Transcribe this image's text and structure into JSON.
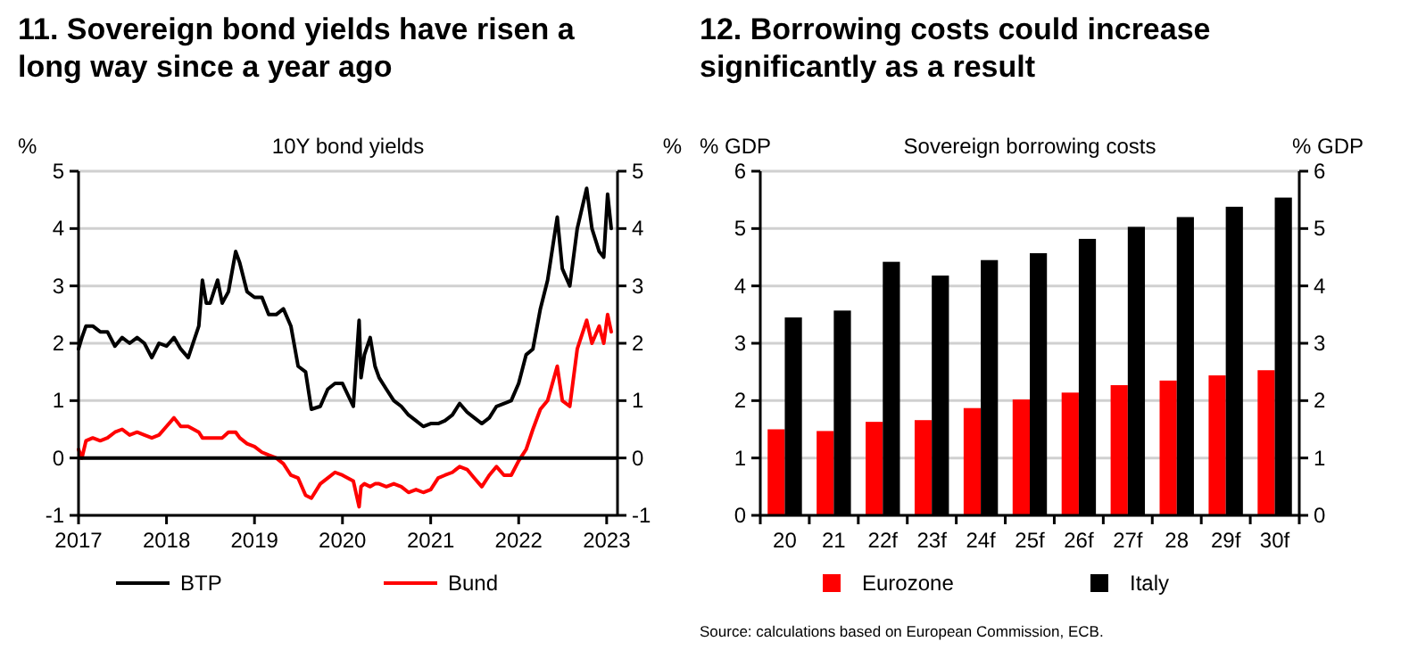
{
  "chart_data": [
    {
      "type": "line",
      "title": "11. Sovereign bond yields have risen a long way since a year ago",
      "subtitle": "10Y bond yields",
      "ylabel": "%",
      "y2label": "%",
      "x": [
        "2017-01-01",
        "2017-01-15",
        "2017-02-01",
        "2017-03-01",
        "2017-04-01",
        "2017-05-01",
        "2017-06-01",
        "2017-07-01",
        "2017-08-01",
        "2017-09-01",
        "2017-10-01",
        "2017-11-01",
        "2017-12-01",
        "2018-01-01",
        "2018-02-01",
        "2018-03-01",
        "2018-04-01",
        "2018-05-15",
        "2018-05-30",
        "2018-06-15",
        "2018-07-01",
        "2018-08-01",
        "2018-08-20",
        "2018-09-15",
        "2018-10-15",
        "2018-11-01",
        "2018-12-01",
        "2019-01-01",
        "2019-02-01",
        "2019-03-01",
        "2019-04-01",
        "2019-05-01",
        "2019-06-01",
        "2019-07-01",
        "2019-08-01",
        "2019-08-25",
        "2019-10-01",
        "2019-11-01",
        "2019-12-01",
        "2020-01-01",
        "2020-02-15",
        "2020-03-10",
        "2020-03-18",
        "2020-04-01",
        "2020-04-25",
        "2020-05-15",
        "2020-06-01",
        "2020-07-01",
        "2020-08-01",
        "2020-09-01",
        "2020-10-01",
        "2020-11-01",
        "2020-12-01",
        "2021-01-01",
        "2021-02-01",
        "2021-03-01",
        "2021-04-01",
        "2021-05-01",
        "2021-06-01",
        "2021-07-01",
        "2021-08-01",
        "2021-09-01",
        "2021-10-01",
        "2021-11-01",
        "2021-12-01",
        "2022-01-01",
        "2022-02-01",
        "2022-03-01",
        "2022-04-01",
        "2022-05-01",
        "2022-06-10",
        "2022-07-01",
        "2022-08-01",
        "2022-09-01",
        "2022-10-10",
        "2022-11-01",
        "2022-12-01",
        "2022-12-20",
        "2023-01-05",
        "2023-01-20"
      ],
      "xlim": [
        "2017-01-01",
        "2023-02-15"
      ],
      "xticks": [
        "2017",
        "2018",
        "2019",
        "2020",
        "2021",
        "2022",
        "2023"
      ],
      "ylim": [
        -1,
        5
      ],
      "yticks": [
        -1,
        0,
        1,
        2,
        3,
        4,
        5
      ],
      "y2lim": [
        -1,
        5
      ],
      "y2ticks": [
        -1,
        0,
        1,
        2,
        3,
        4,
        5
      ],
      "grid": "y",
      "legend": "bottom",
      "ref_lines": [
        {
          "axis": "y",
          "value": 0,
          "color": "#000000"
        }
      ],
      "series": [
        {
          "name": "BTP",
          "color": "#000000",
          "values": [
            1.9,
            2.1,
            2.3,
            2.3,
            2.2,
            2.2,
            1.95,
            2.1,
            2.0,
            2.1,
            2.0,
            1.75,
            2.0,
            1.95,
            2.1,
            1.9,
            1.75,
            2.3,
            3.1,
            2.7,
            2.7,
            3.1,
            2.7,
            2.9,
            3.6,
            3.4,
            2.9,
            2.8,
            2.8,
            2.5,
            2.5,
            2.6,
            2.3,
            1.6,
            1.5,
            0.85,
            0.9,
            1.2,
            1.3,
            1.3,
            0.9,
            2.4,
            1.4,
            1.8,
            2.1,
            1.6,
            1.4,
            1.2,
            1.0,
            0.9,
            0.75,
            0.65,
            0.55,
            0.6,
            0.6,
            0.65,
            0.75,
            0.95,
            0.8,
            0.7,
            0.6,
            0.7,
            0.9,
            0.95,
            1.0,
            1.3,
            1.8,
            1.9,
            2.6,
            3.1,
            4.2,
            3.3,
            3.0,
            4.0,
            4.7,
            4.0,
            3.6,
            3.5,
            4.6,
            4.0
          ]
        },
        {
          "name": "Bund",
          "color": "#ff0000",
          "values": [
            0.15,
            0.0,
            0.3,
            0.35,
            0.3,
            0.35,
            0.45,
            0.5,
            0.4,
            0.45,
            0.4,
            0.35,
            0.4,
            0.55,
            0.7,
            0.55,
            0.55,
            0.45,
            0.35,
            0.35,
            0.35,
            0.35,
            0.35,
            0.45,
            0.45,
            0.35,
            0.25,
            0.2,
            0.1,
            0.05,
            0.0,
            -0.1,
            -0.3,
            -0.35,
            -0.65,
            -0.7,
            -0.45,
            -0.35,
            -0.25,
            -0.3,
            -0.4,
            -0.85,
            -0.5,
            -0.45,
            -0.5,
            -0.45,
            -0.45,
            -0.5,
            -0.45,
            -0.5,
            -0.6,
            -0.55,
            -0.6,
            -0.55,
            -0.35,
            -0.3,
            -0.25,
            -0.15,
            -0.2,
            -0.35,
            -0.5,
            -0.3,
            -0.15,
            -0.3,
            -0.3,
            -0.05,
            0.15,
            0.5,
            0.85,
            1.0,
            1.6,
            1.0,
            0.9,
            1.9,
            2.4,
            2.0,
            2.3,
            2.0,
            2.5,
            2.2
          ]
        }
      ]
    },
    {
      "type": "bar",
      "title": "12. Borrowing costs could increase significantly as a result",
      "subtitle": "Sovereign borrowing costs",
      "ylabel": "% GDP",
      "y2label": "% GDP",
      "categories": [
        "20",
        "21",
        "22f",
        "23f",
        "24f",
        "25f",
        "26f",
        "27f",
        "28",
        "29f",
        "30f"
      ],
      "ylim": [
        0,
        6
      ],
      "yticks": [
        0,
        1,
        2,
        3,
        4,
        5,
        6
      ],
      "y2lim": [
        0,
        6
      ],
      "y2ticks": [
        0,
        1,
        2,
        3,
        4,
        5,
        6
      ],
      "grid": "y",
      "legend": "bottom",
      "annotations": [
        "Source: calculations based on European Commission, ECB."
      ],
      "series": [
        {
          "name": "Eurozone",
          "color": "#ff0000",
          "values": [
            1.5,
            1.47,
            1.63,
            1.66,
            1.87,
            2.02,
            2.14,
            2.27,
            2.35,
            2.44,
            2.53
          ]
        },
        {
          "name": "Italy",
          "color": "#000000",
          "values": [
            3.45,
            3.57,
            4.42,
            4.18,
            4.45,
            4.57,
            4.82,
            5.03,
            5.2,
            5.38,
            5.54
          ]
        }
      ]
    }
  ]
}
